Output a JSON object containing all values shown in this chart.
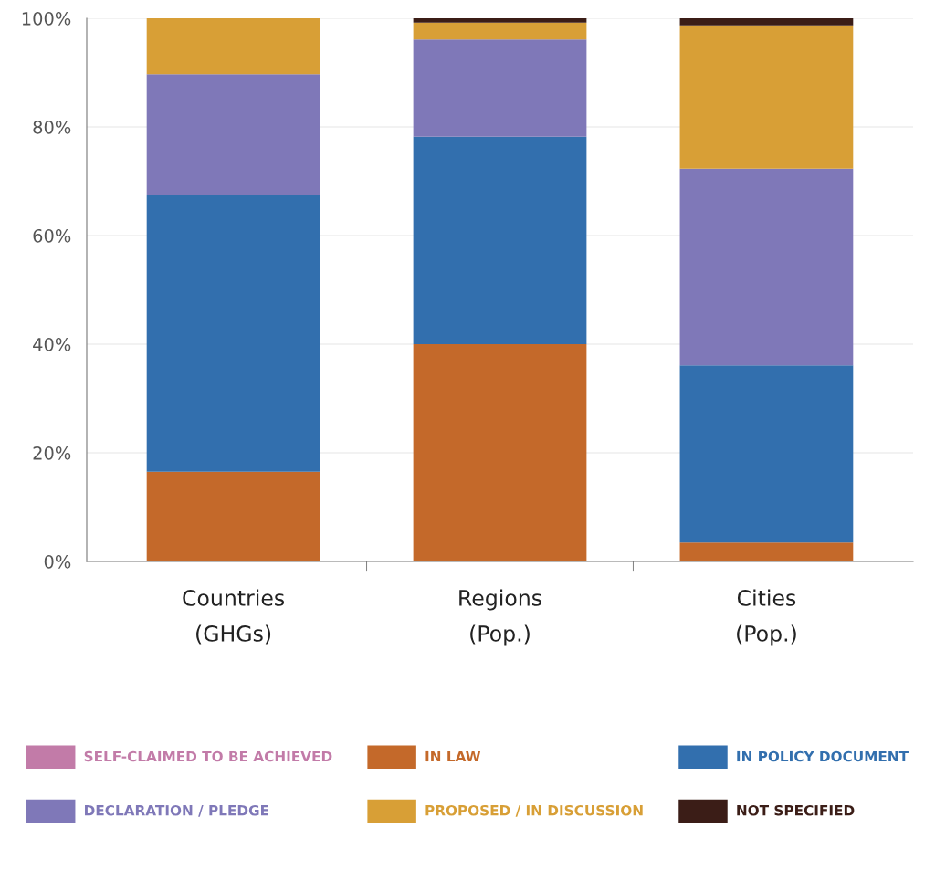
{
  "chart_data": {
    "type": "bar",
    "stacked": true,
    "categories": [
      "Countries\n(GHGs)",
      "Regions\n(Pop.)",
      "Cities\n(Pop.)"
    ],
    "series": [
      {
        "name": "SELF-CLAIMED TO BE ACHIEVED",
        "color": "#c27ba8",
        "values": [
          0,
          0,
          0
        ]
      },
      {
        "name": "IN LAW",
        "color": "#c4692a",
        "values": [
          16.5,
          40,
          3.5
        ]
      },
      {
        "name": "IN POLICY DOCUMENT",
        "color": "#326fae",
        "values": [
          50.9,
          38.2,
          32.6
        ]
      },
      {
        "name": "DECLARATION / PLEDGE",
        "color": "#7f78b8",
        "values": [
          22.3,
          17.9,
          36.2
        ]
      },
      {
        "name": "PROPOSED / IN DISCUSSION",
        "color": "#d89f36",
        "values": [
          10.3,
          3.1,
          26.4
        ]
      },
      {
        "name": "NOT SPECIFIED",
        "color": "#3b1d17",
        "values": [
          0,
          0.8,
          1.3
        ]
      }
    ],
    "ylim": [
      0,
      100
    ],
    "yticks": [
      {
        "value": 0,
        "label": "0%"
      },
      {
        "value": 20,
        "label": "20%"
      },
      {
        "value": 40,
        "label": "40%"
      },
      {
        "value": 60,
        "label": "60%"
      },
      {
        "value": 80,
        "label": "80%"
      },
      {
        "value": 100,
        "label": "100%"
      }
    ],
    "grid": "y",
    "legend": "bottom"
  }
}
